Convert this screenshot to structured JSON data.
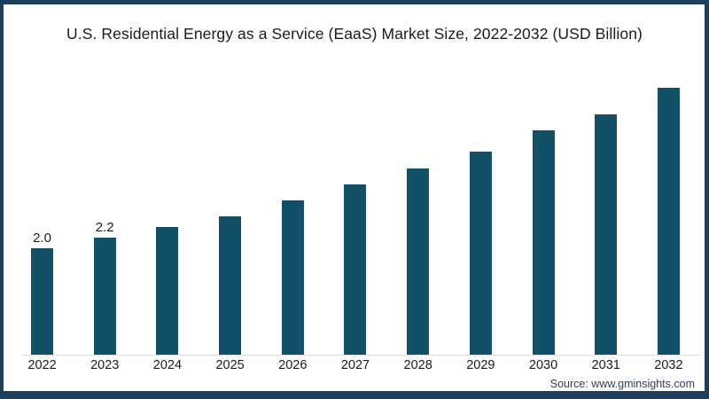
{
  "chart_data": {
    "type": "bar",
    "title": "U.S. Residential Energy as a Service (EaaS) Market Size, 2022-2032  (USD Billion)",
    "categories": [
      "2022",
      "2023",
      "2024",
      "2025",
      "2026",
      "2027",
      "2028",
      "2029",
      "2030",
      "2031",
      "2032"
    ],
    "values": [
      2.0,
      2.2,
      2.4,
      2.6,
      2.9,
      3.2,
      3.5,
      3.8,
      4.2,
      4.5,
      5.0
    ],
    "value_labels": [
      "2.0",
      "2.2",
      null,
      null,
      null,
      null,
      null,
      null,
      null,
      null,
      null
    ],
    "xlabel": "",
    "ylabel": "",
    "ylim": [
      0,
      5.0
    ],
    "grid": false,
    "legend": "none",
    "bar_color": "#115067"
  },
  "source": {
    "label": "Source: www.gminsights.com"
  },
  "frame": {
    "border_color": "#1d3e5e",
    "background": "#ffffff"
  }
}
